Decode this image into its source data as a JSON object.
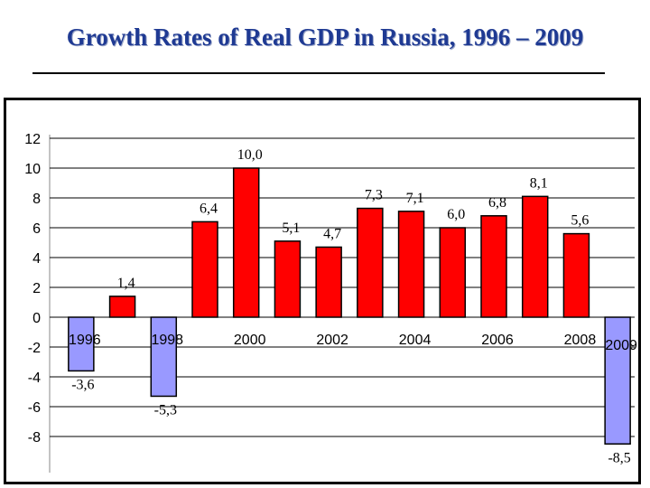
{
  "chart_data": {
    "type": "bar",
    "title": "Growth Rates of Real GDP in Russia, 1996 – 2009",
    "xlabel": "",
    "ylabel": "",
    "ylim": [
      -9,
      12
    ],
    "y_ticks": [
      12,
      10,
      8,
      6,
      4,
      2,
      0,
      -2,
      -4,
      -6,
      -8
    ],
    "grid": true,
    "legend": "none",
    "categories": [
      "1996",
      "1997",
      "1998",
      "1999",
      "2000",
      "2001",
      "2002",
      "2003",
      "2004",
      "2005",
      "2006",
      "2007",
      "2008",
      "2009"
    ],
    "values": [
      -3.6,
      1.4,
      -5.3,
      6.4,
      10.0,
      5.1,
      4.7,
      7.3,
      7.1,
      6.0,
      6.8,
      8.1,
      5.6,
      -8.5
    ],
    "value_labels": [
      "-3,6",
      "1,4",
      "-5,3",
      "6,4",
      "10,0",
      "5,1",
      "4,7",
      "7,3",
      "7,1",
      "6,0",
      "6,8",
      "8,1",
      "5,6",
      "-8,5"
    ],
    "tick_labels": [
      "1996",
      "",
      "1998",
      "",
      "2000",
      "",
      "2002",
      "",
      "2004",
      "",
      "2006",
      "",
      "2008",
      "2009"
    ],
    "colors": {
      "positive": "#ff0000",
      "negative": "#9999ff",
      "grid": "#000000",
      "title": "#1f3a93"
    }
  }
}
